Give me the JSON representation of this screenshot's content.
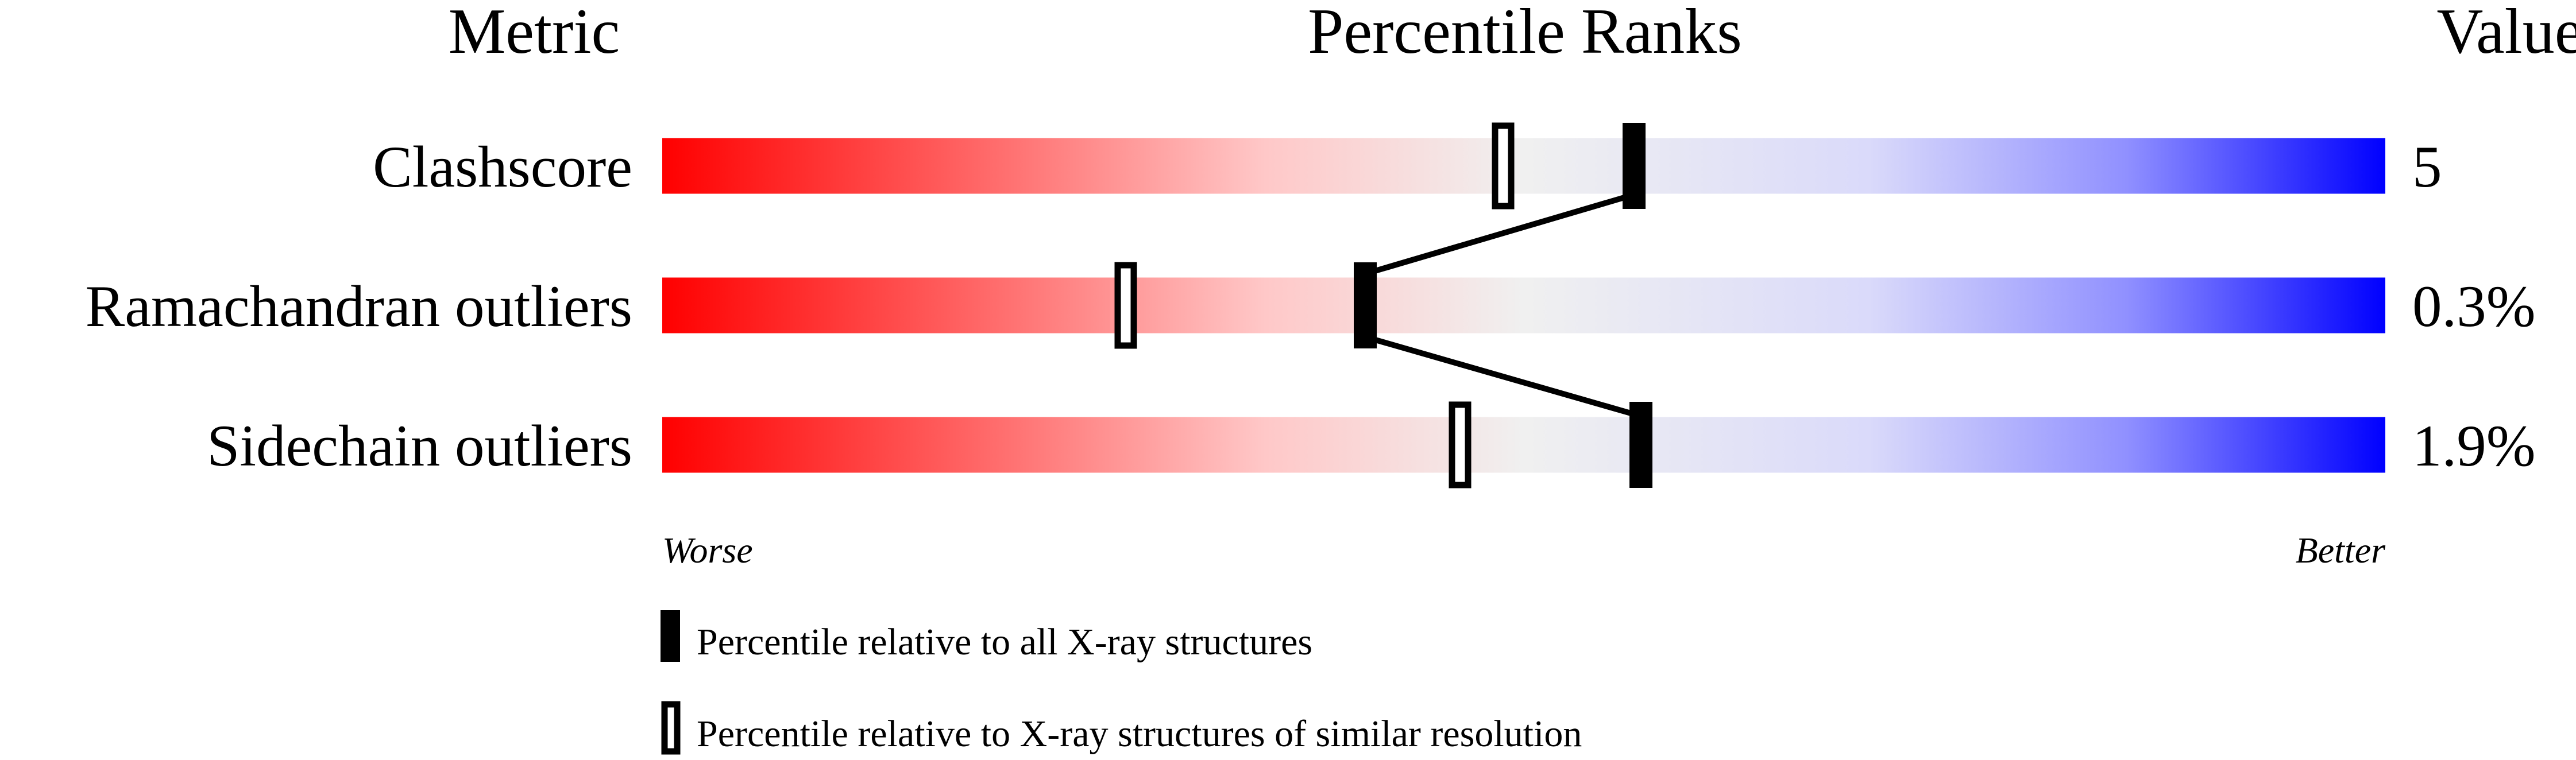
{
  "chart_data": {
    "type": "percentile-bar",
    "headers": {
      "metric": "Metric",
      "ranks": "Percentile Ranks",
      "value": "Value"
    },
    "xlim": [
      0,
      100
    ],
    "axis_labels": {
      "worse": "Worse",
      "better": "Better"
    },
    "gradient_colors": [
      "#ff0000",
      "#f0f0f0",
      "#0000ff"
    ],
    "metrics": [
      {
        "name": "Clashscore",
        "value": "5",
        "percentile_all": 56.4,
        "percentile_similar": 48.8
      },
      {
        "name": "Ramachandran outliers",
        "value": "0.3%",
        "percentile_all": 40.8,
        "percentile_similar": 26.9
      },
      {
        "name": "Sidechain outliers",
        "value": "1.9%",
        "percentile_all": 56.8,
        "percentile_similar": 46.3
      }
    ],
    "legend": [
      {
        "marker": "filled",
        "label": "Percentile relative to all X-ray structures"
      },
      {
        "marker": "open",
        "label": "Percentile relative to X-ray structures of similar resolution"
      }
    ]
  }
}
